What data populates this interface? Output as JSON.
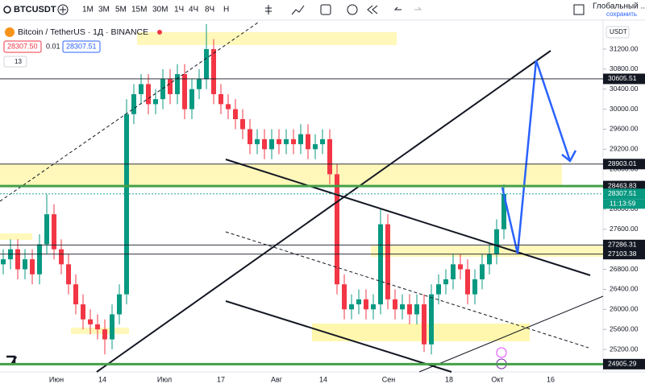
{
  "toolbar": {
    "symbol": "BTCUSDT",
    "intervals": [
      "1М",
      "3М",
      "5М",
      "15М",
      "30М",
      "1Ч",
      "4Ч",
      "8Ч",
      "Н"
    ],
    "layout_name": "Глобальный ...",
    "save": "сохранить"
  },
  "legend": {
    "title": "Bitcoin / TetherUS · 1Д · BINANCE",
    "bid": "28307.50",
    "spread": "0.01",
    "ask": "28307.51",
    "indicators": "13"
  },
  "chart_data": {
    "type": "candlestick",
    "currency": "USDT",
    "up_color": "#089981",
    "down_color": "#f23645",
    "x_labels": [
      "Июн",
      "14",
      "Июл",
      "17",
      "Авг",
      "14",
      "Сен",
      "18",
      "Окт",
      "16"
    ],
    "ylim": [
      24750,
      31763
    ],
    "yticks": [
      {
        "value": 25200,
        "label": "25200.00"
      },
      {
        "value": 25600,
        "label": "25600.00"
      },
      {
        "value": 26000,
        "label": "26000.00"
      },
      {
        "value": 26400,
        "label": "26400.00"
      },
      {
        "value": 26800,
        "label": "26800.00"
      },
      {
        "value": 27200,
        "label": "27200.00"
      },
      {
        "value": 27600,
        "label": "27600.00"
      },
      {
        "value": 28000,
        "label": "28000.00"
      },
      {
        "value": 28400,
        "label": "28400.00"
      },
      {
        "value": 28800,
        "label": "28800.00"
      },
      {
        "value": 29200,
        "label": "29200.00"
      },
      {
        "value": 29600,
        "label": "29600.00"
      },
      {
        "value": 30000,
        "label": "30000.00"
      },
      {
        "value": 30400,
        "label": "30400.00"
      },
      {
        "value": 30800,
        "label": "30800.00"
      },
      {
        "value": 31200,
        "label": "31200.00"
      }
    ],
    "open": [
      26900,
      27000,
      27200,
      26800,
      27000,
      26700,
      27300,
      27900,
      27200,
      26900,
      26500,
      26100,
      25800,
      25700,
      25600,
      25400,
      25900,
      26300,
      29900,
      30300,
      30500,
      30100,
      30200,
      30600,
      30300,
      30700,
      30000,
      30400,
      30600,
      31200,
      30300,
      30100,
      30000,
      29800,
      29600,
      29300,
      29400,
      29200,
      29400,
      29300,
      29400,
      29300,
      29500,
      29200,
      29300,
      29400,
      28700,
      26500,
      26000,
      26100,
      26200,
      26000,
      26100,
      27700,
      26200,
      26000,
      26100,
      25900,
      26100,
      25300,
      26300,
      26500,
      26600,
      26900,
      26800,
      26300,
      26600,
      26900,
      27100,
      27600
    ],
    "high": [
      27200,
      27400,
      27400,
      27200,
      27200,
      27500,
      28300,
      28100,
      27400,
      27100,
      26700,
      26300,
      26000,
      25900,
      25800,
      26100,
      26500,
      30200,
      30500,
      30700,
      30700,
      30400,
      30800,
      30800,
      30900,
      30900,
      30600,
      30800,
      31700,
      31400,
      30500,
      30300,
      30200,
      30000,
      29800,
      29600,
      29600,
      29600,
      29600,
      29600,
      29600,
      29700,
      29700,
      29500,
      29600,
      29600,
      28900,
      26700,
      26300,
      26400,
      26400,
      26300,
      28000,
      27900,
      26400,
      26300,
      26300,
      26300,
      26300,
      26500,
      26700,
      26800,
      27100,
      27100,
      27000,
      26800,
      27100,
      27300,
      27800,
      28500
    ],
    "low": [
      26700,
      26800,
      26600,
      26600,
      26500,
      26500,
      27100,
      27000,
      26700,
      26300,
      25900,
      25600,
      25500,
      25400,
      25100,
      25200,
      25700,
      26100,
      29700,
      30100,
      29900,
      29900,
      30000,
      30100,
      30100,
      29800,
      29800,
      30200,
      30400,
      30100,
      29900,
      29800,
      29600,
      29400,
      29100,
      29100,
      29000,
      29000,
      29100,
      29100,
      29100,
      29100,
      29000,
      29000,
      29100,
      28500,
      26300,
      25800,
      25800,
      25900,
      25800,
      25800,
      25900,
      26000,
      25800,
      25800,
      25700,
      25700,
      25150,
      25100,
      26100,
      26300,
      26400,
      26600,
      26100,
      26100,
      26400,
      26700,
      26900,
      27400
    ],
    "close": [
      27000,
      27200,
      26800,
      27000,
      26700,
      27300,
      27900,
      27200,
      26900,
      26500,
      26100,
      25800,
      25700,
      25600,
      25400,
      25900,
      26300,
      29900,
      30300,
      30500,
      30100,
      30200,
      30600,
      30300,
      30700,
      30000,
      30400,
      30600,
      31200,
      30300,
      30100,
      30000,
      29800,
      29600,
      29300,
      29400,
      29200,
      29400,
      29300,
      29400,
      29300,
      29500,
      29200,
      29300,
      29400,
      28700,
      26500,
      26000,
      26100,
      26200,
      26000,
      26100,
      27700,
      26200,
      26000,
      26100,
      25900,
      26100,
      25300,
      26300,
      26500,
      26600,
      26900,
      26800,
      26300,
      26600,
      26900,
      27100,
      27600,
      28307.51
    ],
    "price_lines": [
      {
        "value": 30605.51,
        "color": "#131722"
      },
      {
        "value": 28903.01,
        "color": "#131722"
      },
      {
        "value": 28463.83,
        "color": "#43a047"
      },
      {
        "value": 28307.51,
        "color": "#089981"
      },
      {
        "value": 27286.31,
        "color": "#131722"
      },
      {
        "value": 27103.38,
        "color": "#131722"
      },
      {
        "value": 24905.29,
        "color": "#43a047"
      }
    ],
    "countdown": "11:13:59"
  }
}
